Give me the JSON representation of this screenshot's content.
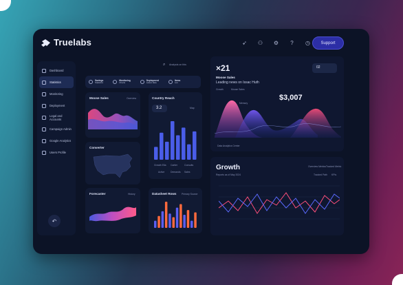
{
  "app": {
    "name": "Truelabs",
    "support": "Support"
  },
  "sidebar": {
    "items": [
      {
        "label": "Dashboard",
        "icon": "home-icon"
      },
      {
        "label": "Statistics",
        "icon": "chart-icon",
        "active": true
      },
      {
        "label": "Monitoring",
        "icon": "monitor-icon"
      },
      {
        "label": "Deployment",
        "icon": "deploy-icon"
      },
      {
        "label": "Legal and Accounts",
        "icon": "doc-icon"
      },
      {
        "label": "Campaign Admin",
        "icon": "megaphone-icon"
      },
      {
        "label": "Google Analytics",
        "icon": "analytics-icon"
      },
      {
        "label": "Users Profile",
        "icon": "user-icon"
      }
    ]
  },
  "search": {
    "placeholder": "Analysis on this"
  },
  "filters": [
    {
      "title": "Savings",
      "sub": "Statistics"
    },
    {
      "title": "Monitoring",
      "sub": "Charts"
    },
    {
      "title": "Deployment",
      "sub": "Latest data"
    },
    {
      "title": "Items",
      "sub": "List"
    }
  ],
  "cards": {
    "moose": {
      "title": "Moose Sales",
      "sub": "Overview"
    },
    "country": {
      "title": "Country Reach",
      "value": "3.2",
      "filter": "Map"
    },
    "converter": {
      "title": "Converter"
    },
    "forecaster": {
      "title": "Forecaster",
      "sub": "History"
    },
    "datasheet": {
      "title": "Datasheet Rows",
      "sub": "Primary Source"
    },
    "hero": {
      "count": "×21",
      "title": "Moose Sales",
      "subtitle": "Leading news on Issac Huth",
      "amount": "$3,007",
      "pill": "02",
      "legend_a": "Growth",
      "legend_b": "Moose Sales",
      "legend_c": "Memory",
      "footer": "Data Analytics Center"
    },
    "growth": {
      "title": "Growth",
      "sub": "Reports as of May 2024",
      "tab_a": "Overview Metrics",
      "tab_b": "Tracked Metric",
      "legend_a": "Tracked Path",
      "legend_b": "KPIs"
    }
  },
  "country_bars": {
    "values": [
      10,
      21,
      14,
      30,
      19,
      25,
      12,
      22
    ],
    "labels": [
      "Growth Ella",
      "Cartier",
      "Consults"
    ],
    "footer": [
      "Active",
      "Demands",
      "Sales"
    ]
  },
  "datasheet_bars": [
    6,
    10,
    14,
    22,
    12,
    9,
    17,
    20,
    11,
    15,
    6,
    13
  ]
}
